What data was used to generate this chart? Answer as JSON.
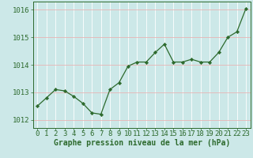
{
  "x": [
    0,
    1,
    2,
    3,
    4,
    5,
    6,
    7,
    8,
    9,
    10,
    11,
    12,
    13,
    14,
    15,
    16,
    17,
    18,
    19,
    20,
    21,
    22,
    23
  ],
  "y": [
    1012.5,
    1012.8,
    1013.1,
    1013.05,
    1012.85,
    1012.6,
    1012.25,
    1012.2,
    1013.1,
    1013.35,
    1013.95,
    1014.1,
    1014.1,
    1014.45,
    1014.75,
    1014.1,
    1014.1,
    1014.2,
    1014.1,
    1014.1,
    1014.45,
    1015.0,
    1015.2,
    1016.05
  ],
  "line_color": "#2d6a2d",
  "marker_color": "#2d6a2d",
  "bg_color": "#cce8e8",
  "grid_color_h": "#e8b4b4",
  "grid_color_v": "#ffffff",
  "ylabel_ticks": [
    1012,
    1013,
    1014,
    1015,
    1016
  ],
  "xlabel_label": "Graphe pression niveau de la mer (hPa)",
  "ylim": [
    1011.7,
    1016.3
  ],
  "xlim": [
    -0.5,
    23.5
  ],
  "tick_color": "#2d6a2d",
  "label_color": "#2d6a2d",
  "axis_color": "#2d6a2d",
  "font_size_label": 7,
  "font_size_tick": 6.5
}
